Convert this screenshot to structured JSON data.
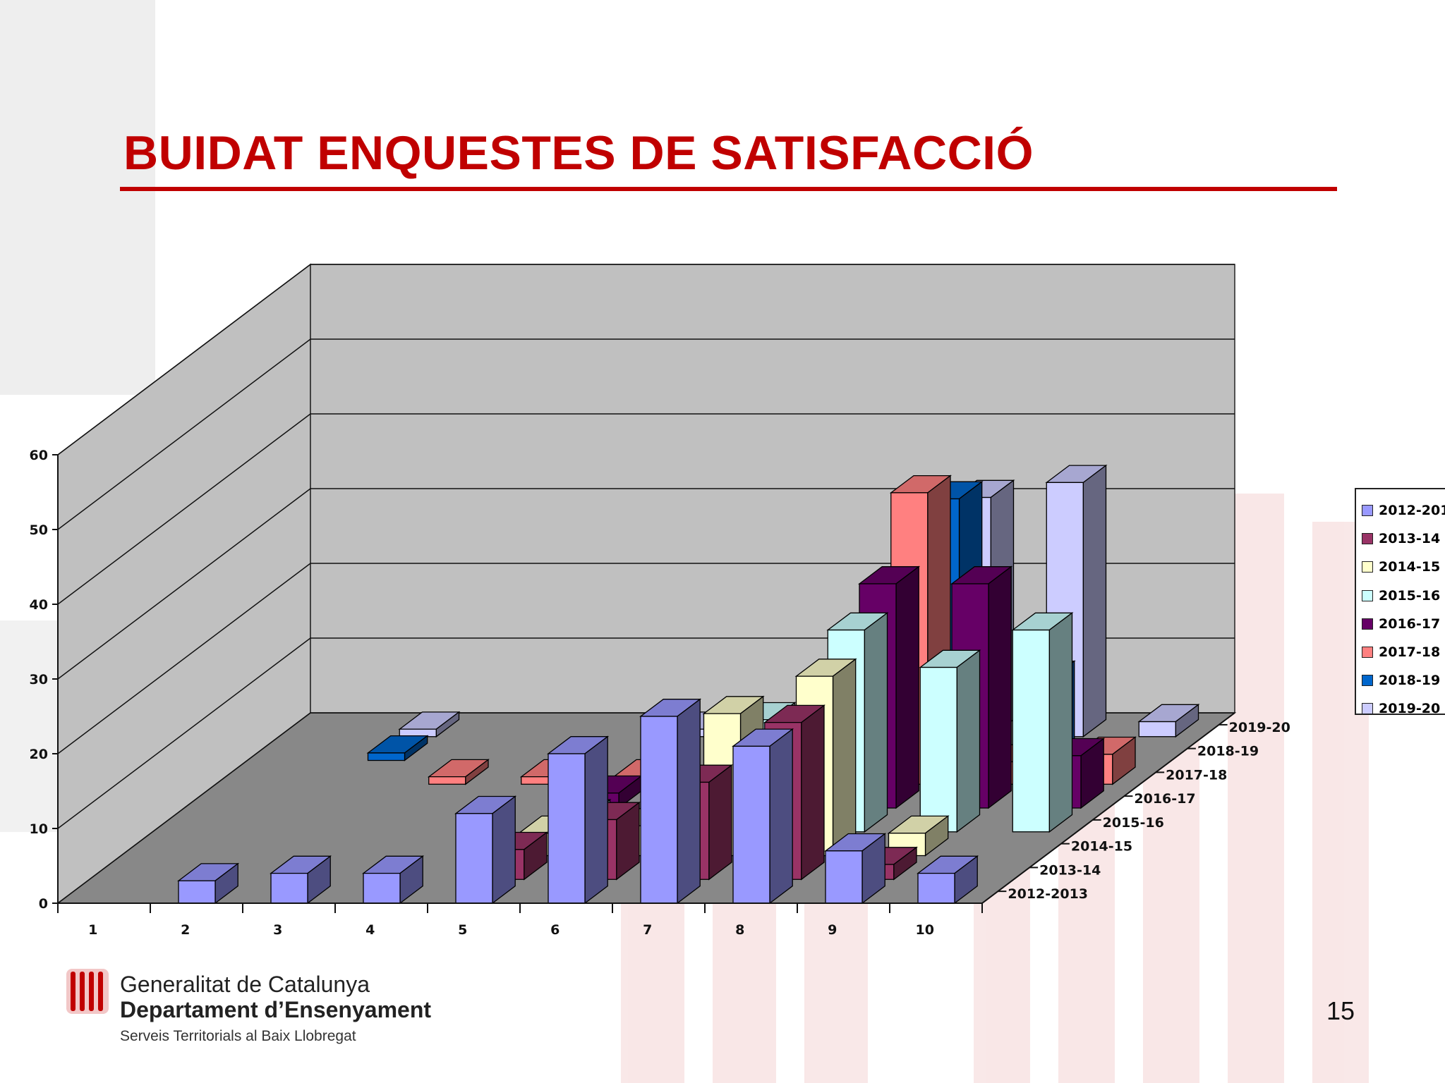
{
  "slide": {
    "title": "BUIDAT ENQUESTES DE SATISFACCIÓ",
    "page_number": "15",
    "accent_color": "#c00000"
  },
  "logo": {
    "line1": "Generalitat de Catalunya",
    "line2": "Departament d’Ensenyament",
    "line3": "Serveis Territorials al Baix Llobregat"
  },
  "chart_data": {
    "type": "bar",
    "style": "3d-clustered-depth",
    "title": "",
    "xlabel": "",
    "ylabel": "",
    "categories": [
      "1",
      "2",
      "3",
      "4",
      "5",
      "6",
      "7",
      "8",
      "9",
      "10"
    ],
    "ylim": [
      0,
      60
    ],
    "yticks": [
      0,
      10,
      20,
      30,
      40,
      50,
      60
    ],
    "grid": true,
    "legend_position": "right",
    "depth_labels": [
      "2012-2013",
      "2013-14",
      "2014-15",
      "2015-16",
      "2016-17",
      "2017-18",
      "2018-19",
      "2019-20"
    ],
    "series": [
      {
        "name": "2012-2013",
        "color": "#9999ff",
        "values": [
          0,
          3,
          4,
          4,
          12,
          20,
          25,
          21,
          7,
          4
        ]
      },
      {
        "name": "2013-14",
        "color": "#993366",
        "values": [
          0,
          0,
          0,
          0,
          4,
          8,
          13,
          21,
          2,
          0
        ]
      },
      {
        "name": "2014-15",
        "color": "#ffffcc",
        "values": [
          0,
          0,
          0,
          0,
          3,
          4,
          19,
          24,
          3,
          0
        ]
      },
      {
        "name": "2015-16",
        "color": "#ccffff",
        "values": [
          0,
          0,
          0,
          0,
          2,
          4,
          15,
          27,
          22,
          27
        ]
      },
      {
        "name": "2016-17",
        "color": "#660066",
        "values": [
          0,
          0,
          0,
          0,
          2,
          3,
          7,
          30,
          30,
          7
        ]
      },
      {
        "name": "2017-18",
        "color": "#ff8080",
        "values": [
          0,
          0,
          1,
          1,
          1,
          3,
          4,
          39,
          3,
          4
        ]
      },
      {
        "name": "2018-19",
        "color": "#0066cc",
        "values": [
          0,
          1,
          0,
          0,
          0,
          0,
          2,
          35,
          11,
          0
        ]
      },
      {
        "name": "2019-20",
        "color": "#ccccff",
        "values": [
          0,
          1,
          0,
          0,
          1,
          0,
          0,
          32,
          34,
          2
        ]
      }
    ]
  }
}
